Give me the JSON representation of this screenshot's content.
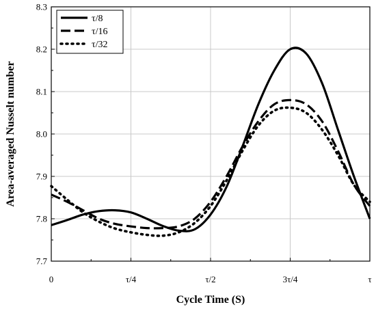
{
  "chart_data": {
    "type": "line",
    "xlabel": "Cycle Time (S)",
    "ylabel": "Area-averaged Nusselt number",
    "xlim": [
      0,
      1
    ],
    "ylim": [
      7.7,
      8.3
    ],
    "x_ticks": [
      {
        "value": 0,
        "label": "0"
      },
      {
        "value": 0.25,
        "label": "τ/4"
      },
      {
        "value": 0.5,
        "label": "τ/2"
      },
      {
        "value": 0.75,
        "label": "3τ/4"
      },
      {
        "value": 1,
        "label": "τ"
      }
    ],
    "y_ticks": [
      7.7,
      7.8,
      7.9,
      8.0,
      8.1,
      8.2,
      8.3
    ],
    "y_tick_labels": [
      "7.7",
      "7.8",
      "7.9",
      "8.0",
      "8.1",
      "8.2",
      "8.3"
    ],
    "grid": true,
    "legend_position": "top-left",
    "series": [
      {
        "name": "τ/8",
        "style": "solid",
        "x": [
          0,
          0.05,
          0.1,
          0.15,
          0.2,
          0.25,
          0.3,
          0.35,
          0.4,
          0.45,
          0.5,
          0.55,
          0.6,
          0.65,
          0.7,
          0.75,
          0.8,
          0.85,
          0.9,
          0.95,
          1.0
        ],
        "y": [
          7.785,
          7.797,
          7.81,
          7.818,
          7.82,
          7.815,
          7.8,
          7.783,
          7.772,
          7.775,
          7.81,
          7.875,
          7.97,
          8.07,
          8.15,
          8.2,
          8.19,
          8.12,
          8.01,
          7.9,
          7.8
        ]
      },
      {
        "name": "τ/16",
        "style": "dashed",
        "x": [
          0,
          0.05,
          0.1,
          0.15,
          0.2,
          0.25,
          0.3,
          0.35,
          0.4,
          0.45,
          0.5,
          0.55,
          0.6,
          0.65,
          0.7,
          0.75,
          0.8,
          0.85,
          0.9,
          0.95,
          1.0
        ],
        "y": [
          7.857,
          7.84,
          7.82,
          7.8,
          7.788,
          7.782,
          7.778,
          7.778,
          7.782,
          7.8,
          7.84,
          7.9,
          7.97,
          8.03,
          8.07,
          8.08,
          8.07,
          8.03,
          7.96,
          7.88,
          7.83
        ]
      },
      {
        "name": "τ/32",
        "style": "dotted",
        "x": [
          0,
          0.05,
          0.1,
          0.15,
          0.2,
          0.25,
          0.3,
          0.35,
          0.4,
          0.45,
          0.5,
          0.55,
          0.6,
          0.65,
          0.7,
          0.75,
          0.8,
          0.85,
          0.9,
          0.95,
          1.0
        ],
        "y": [
          7.877,
          7.845,
          7.815,
          7.793,
          7.777,
          7.768,
          7.762,
          7.76,
          7.768,
          7.79,
          7.83,
          7.89,
          7.96,
          8.02,
          8.055,
          8.062,
          8.05,
          8.01,
          7.95,
          7.88,
          7.84
        ]
      }
    ]
  }
}
